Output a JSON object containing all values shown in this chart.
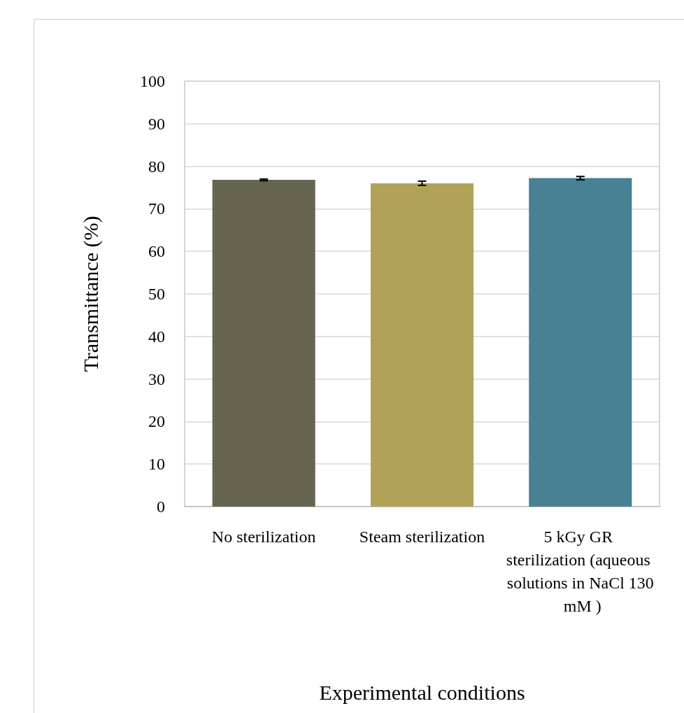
{
  "chart_data": {
    "type": "bar",
    "xlabel": "Experimental conditions",
    "ylabel": "Transmittance (%)",
    "categories": [
      "No sterilization",
      "Steam sterilization",
      "5 kGy GR sterilization (aqueous solutions in NaCl 130 mM )"
    ],
    "values": [
      76.8,
      76.0,
      77.2
    ],
    "colors": [
      "#676550",
      "#b1a25a",
      "#478193"
    ],
    "errors": [
      0.2,
      0.5,
      0.4
    ],
    "ylim": [
      0,
      100
    ],
    "yticks": [
      0,
      10,
      20,
      30,
      40,
      50,
      60,
      70,
      80,
      90,
      100
    ],
    "grid": "y"
  }
}
